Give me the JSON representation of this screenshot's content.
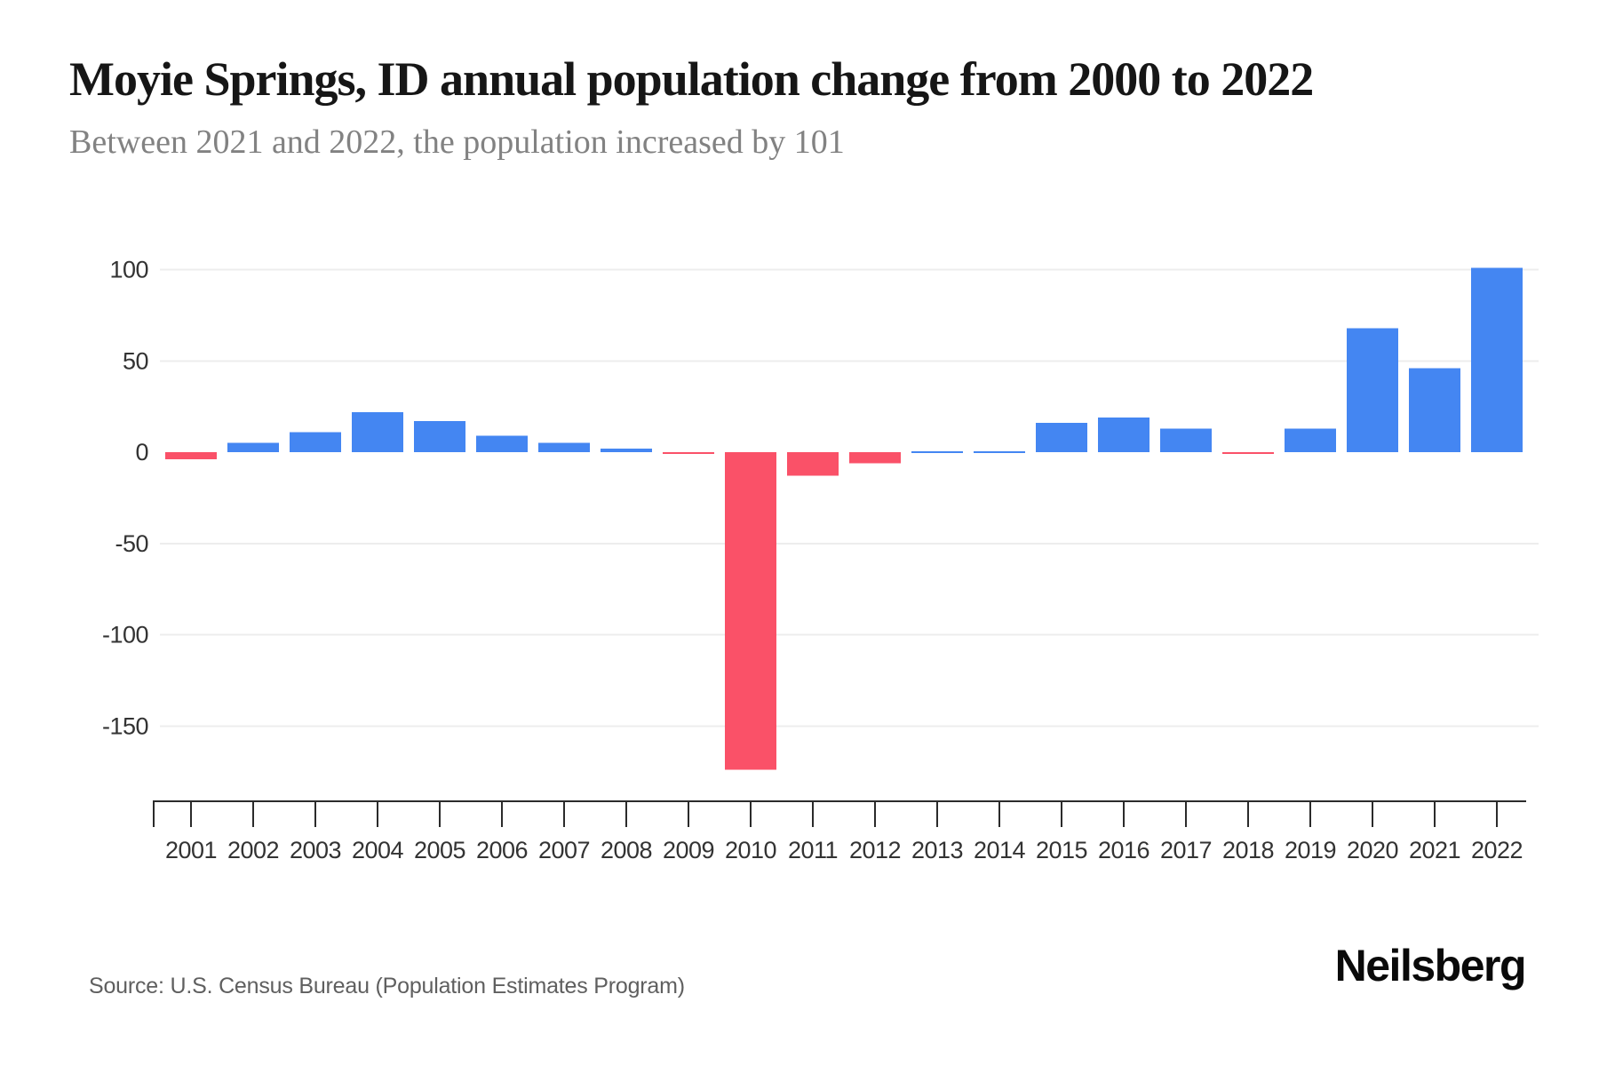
{
  "header": {
    "title": "Moyie Springs, ID annual population change from 2000 to 2022",
    "subtitle": "Between 2021 and 2022, the population increased by 101"
  },
  "footer": {
    "source": "Source: U.S. Census Bureau (Population Estimates Program)",
    "brand": "Neilsberg"
  },
  "chart_data": {
    "type": "bar",
    "title": "Moyie Springs, ID annual population change from 2000 to 2022",
    "subtitle": "Between 2021 and 2022, the population increased by 101",
    "categories": [
      "2001",
      "2002",
      "2003",
      "2004",
      "2005",
      "2006",
      "2007",
      "2008",
      "2009",
      "2010",
      "2011",
      "2012",
      "2013",
      "2014",
      "2015",
      "2016",
      "2017",
      "2018",
      "2019",
      "2020",
      "2021",
      "2022"
    ],
    "values": [
      -4,
      5,
      11,
      22,
      17,
      9,
      5,
      2,
      -1,
      -174,
      -13,
      -6,
      0,
      0,
      16,
      19,
      13,
      -1,
      13,
      68,
      46,
      101
    ],
    "xlabel": "",
    "ylabel": "",
    "y_ticks": [
      100,
      50,
      0,
      -50,
      -100,
      -150
    ],
    "ylim": [
      -191,
      120
    ],
    "grid": true,
    "legend": "none",
    "colors": {
      "positive": "#4486F2",
      "negative": "#FA5168",
      "grid": "#EDEDED",
      "axis": "#2B2B2B",
      "label": "#333333"
    }
  }
}
